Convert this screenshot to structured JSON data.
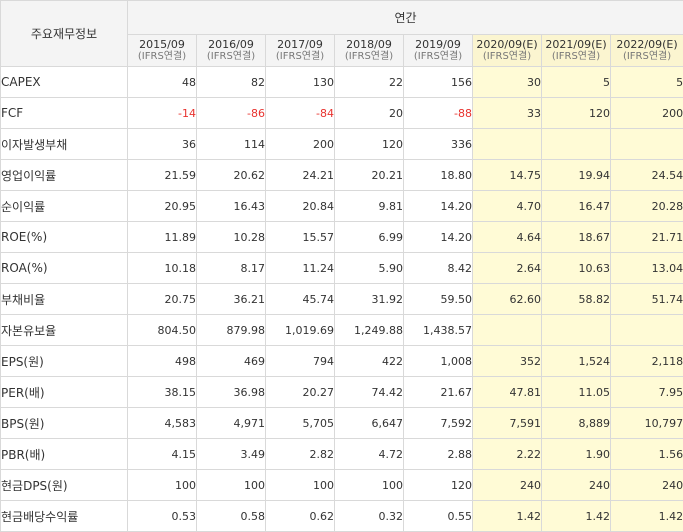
{
  "header": {
    "corner_label": "주요재무정보",
    "annual_label": "연간",
    "periods": [
      {
        "year": "2015/09",
        "sub": "(IFRS연결)",
        "estimate": false
      },
      {
        "year": "2016/09",
        "sub": "(IFRS연결)",
        "estimate": false
      },
      {
        "year": "2017/09",
        "sub": "(IFRS연결)",
        "estimate": false
      },
      {
        "year": "2018/09",
        "sub": "(IFRS연결)",
        "estimate": false
      },
      {
        "year": "2019/09",
        "sub": "(IFRS연결)",
        "estimate": false
      },
      {
        "year": "2020/09(E)",
        "sub": "(IFRS연결)",
        "estimate": true
      },
      {
        "year": "2021/09(E)",
        "sub": "(IFRS연결)",
        "estimate": true
      },
      {
        "year": "2022/09(E)",
        "sub": "(IFRS연결)",
        "estimate": true
      }
    ]
  },
  "colors": {
    "negative": "#e8322e",
    "estimate_background": "#fffbd6",
    "header_background": "#f4f4f4"
  },
  "rows": [
    {
      "label": "CAPEX",
      "values": [
        "48",
        "82",
        "130",
        "22",
        "156",
        "30",
        "5",
        "5"
      ]
    },
    {
      "label": "FCF",
      "values": [
        "-14",
        "-86",
        "-84",
        "20",
        "-88",
        "33",
        "120",
        "200"
      ]
    },
    {
      "label": "이자발생부채",
      "values": [
        "36",
        "114",
        "200",
        "120",
        "336",
        "",
        "",
        ""
      ]
    },
    {
      "label": "영업이익률",
      "values": [
        "21.59",
        "20.62",
        "24.21",
        "20.21",
        "18.80",
        "14.75",
        "19.94",
        "24.54"
      ]
    },
    {
      "label": "순이익률",
      "values": [
        "20.95",
        "16.43",
        "20.84",
        "9.81",
        "14.20",
        "4.70",
        "16.47",
        "20.28"
      ]
    },
    {
      "label": "ROE(%)",
      "values": [
        "11.89",
        "10.28",
        "15.57",
        "6.99",
        "14.20",
        "4.64",
        "18.67",
        "21.71"
      ]
    },
    {
      "label": "ROA(%)",
      "values": [
        "10.18",
        "8.17",
        "11.24",
        "5.90",
        "8.42",
        "2.64",
        "10.63",
        "13.04"
      ]
    },
    {
      "label": "부채비율",
      "values": [
        "20.75",
        "36.21",
        "45.74",
        "31.92",
        "59.50",
        "62.60",
        "58.82",
        "51.74"
      ]
    },
    {
      "label": "자본유보율",
      "values": [
        "804.50",
        "879.98",
        "1,019.69",
        "1,249.88",
        "1,438.57",
        "",
        "",
        ""
      ]
    },
    {
      "label": "EPS(원)",
      "values": [
        "498",
        "469",
        "794",
        "422",
        "1,008",
        "352",
        "1,524",
        "2,118"
      ]
    },
    {
      "label": "PER(배)",
      "values": [
        "38.15",
        "36.98",
        "20.27",
        "74.42",
        "21.67",
        "47.81",
        "11.05",
        "7.95"
      ]
    },
    {
      "label": "BPS(원)",
      "values": [
        "4,583",
        "4,971",
        "5,705",
        "6,647",
        "7,592",
        "7,591",
        "8,889",
        "10,797"
      ]
    },
    {
      "label": "PBR(배)",
      "values": [
        "4.15",
        "3.49",
        "2.82",
        "4.72",
        "2.88",
        "2.22",
        "1.90",
        "1.56"
      ]
    },
    {
      "label": "현금DPS(원)",
      "values": [
        "100",
        "100",
        "100",
        "100",
        "120",
        "240",
        "240",
        "240"
      ]
    },
    {
      "label": "현금배당수익률",
      "values": [
        "0.53",
        "0.58",
        "0.62",
        "0.32",
        "0.55",
        "1.42",
        "1.42",
        "1.42"
      ]
    }
  ]
}
